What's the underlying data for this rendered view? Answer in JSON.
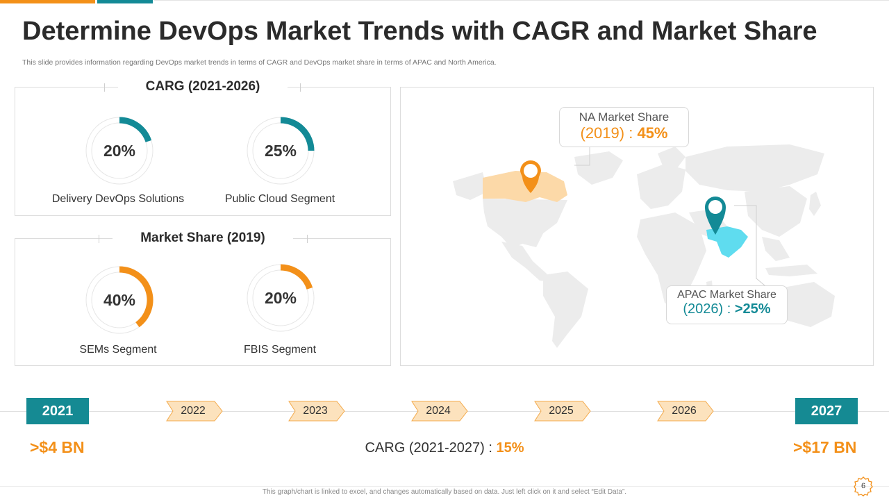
{
  "header": {
    "title": "Determine DevOps Market Trends with CAGR and Market Share",
    "subtitle": "This slide provides information regarding DevOps market trends in terms of CAGR and DevOps market share in terms of APAC  and North America."
  },
  "cagr_panel": {
    "title": "CARG (2021-2026)",
    "items": [
      {
        "value": "20%",
        "percent": 20,
        "label": "Delivery DevOps Solutions",
        "color": "#138a96"
      },
      {
        "value": "25%",
        "percent": 25,
        "label": "Public Cloud Segment",
        "color": "#138a96"
      }
    ]
  },
  "share_panel": {
    "title": "Market Share (2019)",
    "items": [
      {
        "value": "40%",
        "percent": 40,
        "label": "SEMs Segment",
        "color": "#f39019"
      },
      {
        "value": "20%",
        "percent": 20,
        "label": "FBIS Segment",
        "color": "#f39019"
      }
    ]
  },
  "map": {
    "na": {
      "title": "NA Market Share",
      "year": "(2019) : ",
      "value": "45%"
    },
    "apac": {
      "title": "APAC Market Share",
      "year": "(2026) : ",
      "value": ">25%"
    }
  },
  "timeline": {
    "start_year": "2021",
    "end_year": "2027",
    "years": [
      "2022",
      "2023",
      "2024",
      "2025",
      "2026"
    ],
    "start_value": ">$4 BN",
    "end_value": ">$17 BN",
    "cagr_label": "CARG (2021-2027) : ",
    "cagr_value": "15%"
  },
  "footer": {
    "note": "This graph/chart is linked to excel, and changes automatically based on data. Just left click on it and select “Edit Data”.",
    "page": "6"
  },
  "colors": {
    "orange": "#f39019",
    "teal": "#138a96",
    "peach": "#fcd9a8",
    "cyan": "#5fdcef"
  }
}
